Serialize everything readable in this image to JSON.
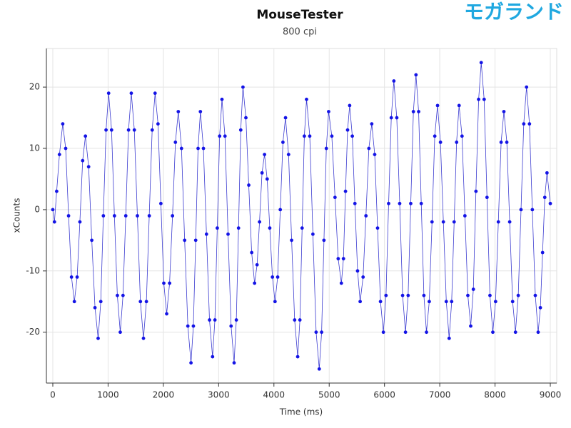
{
  "chart_data": {
    "type": "scatter",
    "title": "MouseTester",
    "subtitle": "800 cpi",
    "watermark": "モガランド",
    "x_label": "Time (ms)",
    "y_label": "xCounts",
    "color": "#1414e6",
    "line_color": "#3b3bd0",
    "connect": true,
    "grid": true,
    "xlim": [
      -116,
      9116
    ],
    "ylim": [
      -28.3,
      26.3
    ],
    "xticks": [
      0,
      1000,
      2000,
      3000,
      4000,
      5000,
      6000,
      7000,
      8000,
      9000
    ],
    "yticks": [
      -20,
      -10,
      0,
      10,
      20
    ],
    "x": [
      0,
      30,
      70,
      120,
      180,
      233,
      285,
      338,
      390,
      440,
      490,
      540,
      590,
      648,
      705,
      763,
      820,
      868,
      915,
      963,
      1010,
      1063,
      1115,
      1168,
      1220,
      1270,
      1320,
      1370,
      1420,
      1475,
      1530,
      1585,
      1640,
      1693,
      1745,
      1798,
      1850,
      1903,
      1955,
      2008,
      2060,
      2113,
      2165,
      2218,
      2270,
      2328,
      2385,
      2443,
      2500,
      2543,
      2585,
      2628,
      2670,
      2725,
      2780,
      2835,
      2890,
      2933,
      2975,
      3018,
      3060,
      3115,
      3170,
      3225,
      3280,
      3320,
      3360,
      3400,
      3440,
      3493,
      3545,
      3598,
      3650,
      3695,
      3740,
      3785,
      3830,
      3878,
      3925,
      3973,
      4020,
      4068,
      4115,
      4163,
      4210,
      4265,
      4320,
      4375,
      4430,
      4470,
      4510,
      4550,
      4590,
      4648,
      4705,
      4763,
      4820,
      4863,
      4905,
      4948,
      4990,
      5048,
      5105,
      5163,
      5220,
      5258,
      5295,
      5333,
      5370,
      5418,
      5465,
      5513,
      5560,
      5613,
      5665,
      5718,
      5770,
      5823,
      5875,
      5928,
      5980,
      6028,
      6075,
      6123,
      6170,
      6223,
      6275,
      6328,
      6380,
      6428,
      6475,
      6523,
      6570,
      6618,
      6665,
      6713,
      6760,
      6810,
      6860,
      6910,
      6960,
      7013,
      7065,
      7118,
      7170,
      7215,
      7260,
      7305,
      7350,
      7403,
      7455,
      7508,
      7560,
      7608,
      7655,
      7703,
      7750,
      7803,
      7855,
      7908,
      7960,
      8010,
      8060,
      8110,
      8160,
      8213,
      8265,
      8318,
      8370,
      8420,
      8470,
      8520,
      8570,
      8623,
      8675,
      8728,
      8780,
      8820,
      8860,
      8900,
      8940,
      9000
    ],
    "values": [
      0,
      -2,
      3,
      9,
      14,
      10,
      -1,
      -11,
      -15,
      -11,
      -2,
      8,
      12,
      7,
      -5,
      -16,
      -21,
      -15,
      -1,
      13,
      19,
      13,
      -1,
      -14,
      -20,
      -14,
      -1,
      13,
      19,
      13,
      -1,
      -15,
      -21,
      -15,
      -1,
      13,
      19,
      14,
      1,
      -12,
      -17,
      -12,
      -1,
      11,
      16,
      10,
      -5,
      -19,
      -25,
      -19,
      -5,
      10,
      16,
      10,
      -4,
      -18,
      -24,
      -18,
      -3,
      12,
      18,
      12,
      -4,
      -19,
      -25,
      -18,
      -3,
      13,
      20,
      15,
      4,
      -7,
      -12,
      -9,
      -2,
      6,
      9,
      5,
      -3,
      -11,
      -15,
      -11,
      0,
      11,
      15,
      9,
      -5,
      -18,
      -24,
      -18,
      -3,
      12,
      18,
      12,
      -4,
      -20,
      -26,
      -20,
      -5,
      10,
      16,
      12,
      2,
      -8,
      -12,
      -8,
      3,
      13,
      17,
      12,
      1,
      -10,
      -15,
      -11,
      -1,
      10,
      14,
      9,
      -3,
      -15,
      -20,
      -14,
      1,
      15,
      21,
      15,
      1,
      -14,
      -20,
      -14,
      1,
      16,
      22,
      16,
      1,
      -14,
      -20,
      -15,
      -2,
      12,
      17,
      11,
      -2,
      -15,
      -21,
      -15,
      -2,
      11,
      17,
      12,
      -1,
      -14,
      -19,
      -13,
      3,
      18,
      24,
      18,
      2,
      -14,
      -20,
      -15,
      -2,
      11,
      16,
      11,
      -2,
      -15,
      -20,
      -14,
      0,
      14,
      20,
      14,
      0,
      -14,
      -20,
      -16,
      -7,
      2,
      6,
      1
    ]
  }
}
